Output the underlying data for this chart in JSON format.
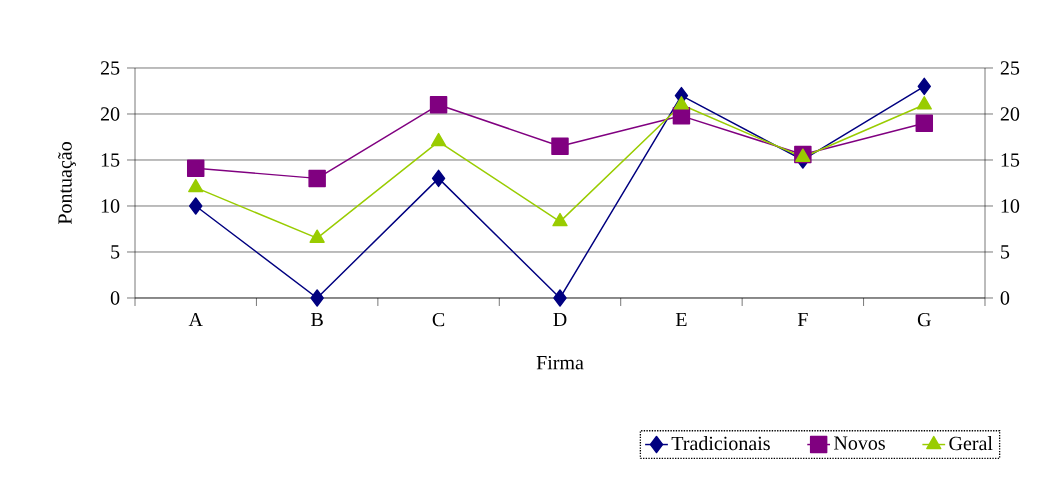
{
  "chart_data": {
    "type": "line",
    "xlabel": "Firma",
    "ylabel": "Pontuação",
    "categories": [
      "A",
      "B",
      "C",
      "D",
      "E",
      "F",
      "G"
    ],
    "series": [
      {
        "name": "Tradicionais",
        "color": "#000080",
        "marker": "diamond",
        "values": [
          10,
          0,
          13,
          0,
          22,
          15,
          23
        ]
      },
      {
        "name": "Novos",
        "color": "#800080",
        "marker": "square",
        "values": [
          14.1,
          13,
          21,
          16.5,
          19.8,
          15.6,
          19
        ]
      },
      {
        "name": "Geral",
        "color": "#99cc00",
        "marker": "triangle",
        "values": [
          12,
          6.5,
          17,
          8.3,
          21,
          15.3,
          21
        ]
      }
    ],
    "ylim": [
      0,
      25
    ],
    "yticks": [
      0,
      5,
      10,
      15,
      20,
      25
    ],
    "y2lim": [
      0,
      25
    ],
    "y2ticks": [
      0,
      5,
      10,
      15,
      20,
      25
    ],
    "grid": "y",
    "legend": "bottom right",
    "line_style": "solid"
  }
}
